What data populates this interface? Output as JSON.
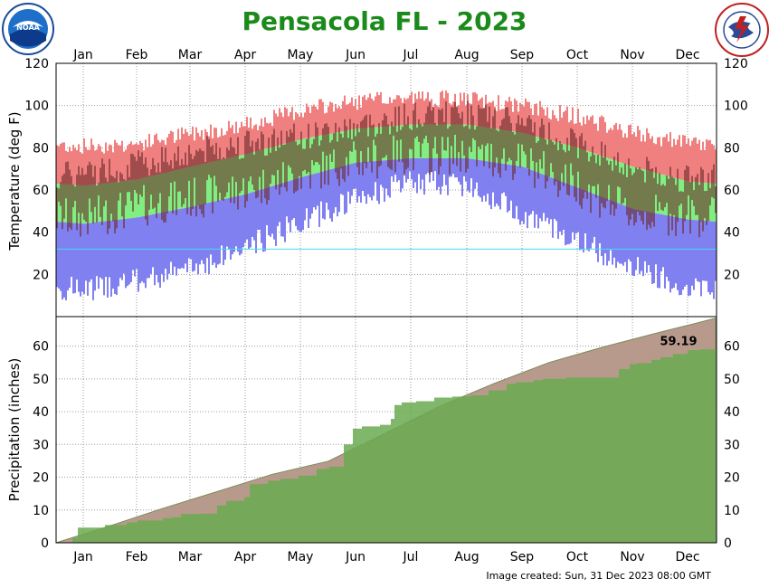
{
  "title": "Pensacola FL - 2023",
  "footer": "Image created: Sun, 31 Dec 2023 08:00 GMT",
  "logos": {
    "left": "NOAA",
    "right": "NATIONAL WEATHER SERVICE"
  },
  "months": [
    "Jan",
    "Feb",
    "Mar",
    "Apr",
    "May",
    "Jun",
    "Jul",
    "Aug",
    "Sep",
    "Oct",
    "Nov",
    "Dec"
  ],
  "colors": {
    "record_band": "#f08080",
    "normal_band": "#80ee80",
    "low_band": "#8080f0",
    "observed": "#6b2a2a",
    "freezing_line": "#40e0f0",
    "normal_precip": "#b89a8c",
    "observed_precip": "#6aaa50",
    "title": "#1a8a1a"
  },
  "chart_data": [
    {
      "type": "bar",
      "name": "temperature",
      "ylabel": "Temperature (deg F)",
      "ylim": [
        0,
        120
      ],
      "yticks": [
        20,
        40,
        60,
        80,
        100,
        120
      ],
      "grid": true,
      "freezing_line": 32,
      "months": [
        "Jan",
        "Feb",
        "Mar",
        "Apr",
        "May",
        "Jun",
        "Jul",
        "Aug",
        "Sep",
        "Oct",
        "Nov",
        "Dec"
      ],
      "normal_high": [
        62,
        65,
        71,
        77,
        84,
        89,
        91,
        91,
        87,
        80,
        71,
        64
      ],
      "normal_low": [
        44,
        47,
        52,
        58,
        66,
        73,
        75,
        75,
        71,
        61,
        51,
        46
      ],
      "record_high": [
        80,
        81,
        86,
        90,
        97,
        101,
        103,
        102,
        99,
        94,
        86,
        81
      ],
      "record_low": [
        14,
        18,
        24,
        34,
        46,
        57,
        65,
        64,
        50,
        37,
        25,
        15
      ],
      "observed_high": [
        68,
        72,
        78,
        82,
        85,
        90,
        95,
        96,
        91,
        82,
        70,
        65
      ],
      "observed_low": [
        46,
        52,
        56,
        60,
        67,
        74,
        77,
        77,
        73,
        62,
        48,
        48
      ]
    },
    {
      "type": "area",
      "name": "precipitation",
      "ylabel": "Precipitation (inches)",
      "ylim": [
        0,
        69
      ],
      "yticks": [
        0,
        10,
        20,
        30,
        40,
        50,
        60
      ],
      "grid": true,
      "months": [
        "Jan",
        "Feb",
        "Mar",
        "Apr",
        "May",
        "Jun",
        "Jul",
        "Aug",
        "Sep",
        "Oct",
        "Nov",
        "Dec"
      ],
      "normal_cumulative_end_of_month": [
        5.3,
        10.4,
        15.7,
        20.9,
        24.9,
        33.0,
        41.5,
        48.7,
        55.0,
        59.9,
        64.2,
        68.5
      ],
      "observed_cumulative": [
        {
          "day": 1,
          "value": 0.0
        },
        {
          "day": 10,
          "value": 1.5
        },
        {
          "day": 13,
          "value": 4.6
        },
        {
          "day": 25,
          "value": 4.6
        },
        {
          "day": 28,
          "value": 5.4
        },
        {
          "day": 40,
          "value": 6.2
        },
        {
          "day": 46,
          "value": 6.8
        },
        {
          "day": 60,
          "value": 7.5
        },
        {
          "day": 65,
          "value": 7.8
        },
        {
          "day": 70,
          "value": 8.8
        },
        {
          "day": 82,
          "value": 8.9
        },
        {
          "day": 90,
          "value": 11.4
        },
        {
          "day": 95,
          "value": 12.8
        },
        {
          "day": 105,
          "value": 13.9
        },
        {
          "day": 108,
          "value": 17.9
        },
        {
          "day": 115,
          "value": 18.0
        },
        {
          "day": 118,
          "value": 19.0
        },
        {
          "day": 125,
          "value": 19.5
        },
        {
          "day": 135,
          "value": 20.5
        },
        {
          "day": 145,
          "value": 22.5
        },
        {
          "day": 150,
          "value": 22.7
        },
        {
          "day": 152,
          "value": 23.2
        },
        {
          "day": 160,
          "value": 30.0
        },
        {
          "day": 165,
          "value": 34.8
        },
        {
          "day": 170,
          "value": 35.5
        },
        {
          "day": 180,
          "value": 36.0
        },
        {
          "day": 186,
          "value": 37.8
        },
        {
          "day": 188,
          "value": 42.0
        },
        {
          "day": 192,
          "value": 42.8
        },
        {
          "day": 200,
          "value": 43.2
        },
        {
          "day": 210,
          "value": 44.3
        },
        {
          "day": 220,
          "value": 44.6
        },
        {
          "day": 230,
          "value": 45.0
        },
        {
          "day": 240,
          "value": 46.5
        },
        {
          "day": 250,
          "value": 48.5
        },
        {
          "day": 255,
          "value": 49.0
        },
        {
          "day": 265,
          "value": 49.6
        },
        {
          "day": 270,
          "value": 50.0
        },
        {
          "day": 283,
          "value": 50.4
        },
        {
          "day": 290,
          "value": 50.4
        },
        {
          "day": 300,
          "value": 50.4
        },
        {
          "day": 312,
          "value": 53.0
        },
        {
          "day": 318,
          "value": 54.5
        },
        {
          "day": 322,
          "value": 54.8
        },
        {
          "day": 330,
          "value": 55.8
        },
        {
          "day": 335,
          "value": 56.6
        },
        {
          "day": 342,
          "value": 57.6
        },
        {
          "day": 350,
          "value": 58.8
        },
        {
          "day": 357,
          "value": 59.0
        },
        {
          "day": 365,
          "value": 59.19
        }
      ],
      "total_label": "59.19"
    }
  ]
}
